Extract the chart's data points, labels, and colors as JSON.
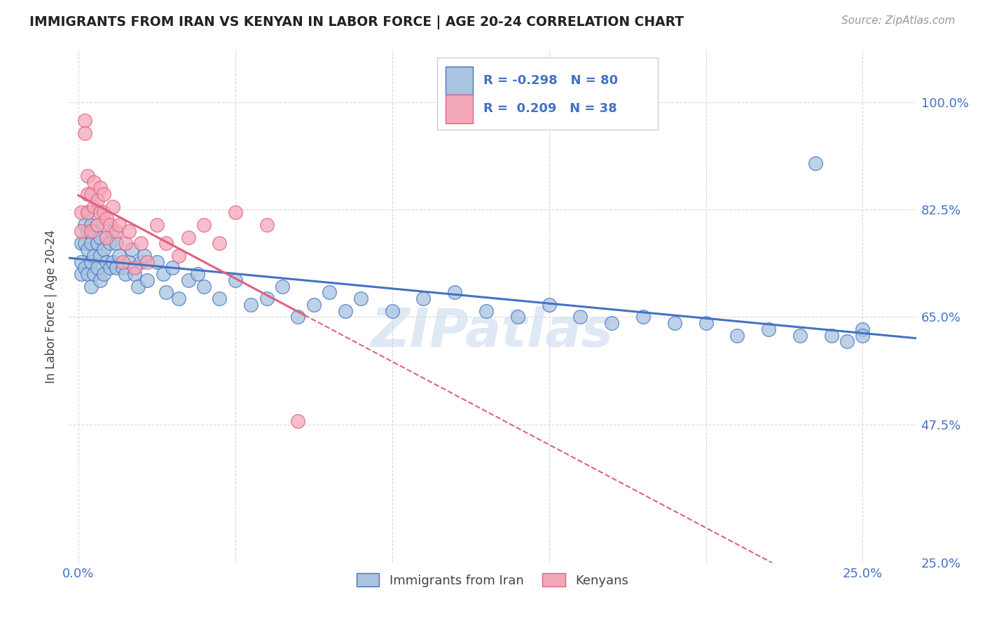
{
  "title": "IMMIGRANTS FROM IRAN VS KENYAN IN LABOR FORCE | AGE 20-24 CORRELATION CHART",
  "source": "Source: ZipAtlas.com",
  "ylabel": "In Labor Force | Age 20-24",
  "watermark": "ZIPatlas",
  "legend_iran": "Immigrants from Iran",
  "legend_kenya": "Kenyans",
  "iran_R": "-0.298",
  "iran_N": "80",
  "kenya_R": "0.209",
  "kenya_N": "38",
  "iran_color": "#a8c4e0",
  "kenya_color": "#f4a7b9",
  "iran_line_color": "#4472c4",
  "kenya_line_color": "#e06080",
  "background_color": "#ffffff",
  "grid_color": "#d8d8d8",
  "title_color": "#222222",
  "axis_color": "#4472c4",
  "iran_scatter_x": [
    0.001,
    0.001,
    0.001,
    0.002,
    0.002,
    0.002,
    0.003,
    0.003,
    0.003,
    0.003,
    0.004,
    0.004,
    0.004,
    0.004,
    0.005,
    0.005,
    0.005,
    0.006,
    0.006,
    0.006,
    0.007,
    0.007,
    0.007,
    0.008,
    0.008,
    0.009,
    0.009,
    0.01,
    0.01,
    0.011,
    0.011,
    0.012,
    0.012,
    0.013,
    0.014,
    0.015,
    0.016,
    0.017,
    0.018,
    0.019,
    0.02,
    0.021,
    0.022,
    0.025,
    0.027,
    0.028,
    0.03,
    0.032,
    0.035,
    0.038,
    0.04,
    0.045,
    0.05,
    0.055,
    0.06,
    0.065,
    0.07,
    0.075,
    0.08,
    0.085,
    0.09,
    0.1,
    0.11,
    0.12,
    0.13,
    0.14,
    0.15,
    0.16,
    0.17,
    0.18,
    0.19,
    0.2,
    0.21,
    0.22,
    0.23,
    0.235,
    0.24,
    0.245,
    0.25,
    0.25
  ],
  "iran_scatter_y": [
    0.77,
    0.74,
    0.72,
    0.8,
    0.77,
    0.73,
    0.82,
    0.79,
    0.76,
    0.72,
    0.8,
    0.77,
    0.74,
    0.7,
    0.79,
    0.75,
    0.72,
    0.8,
    0.77,
    0.73,
    0.78,
    0.75,
    0.71,
    0.76,
    0.72,
    0.78,
    0.74,
    0.77,
    0.73,
    0.79,
    0.74,
    0.77,
    0.73,
    0.75,
    0.73,
    0.72,
    0.74,
    0.76,
    0.72,
    0.7,
    0.74,
    0.75,
    0.71,
    0.74,
    0.72,
    0.69,
    0.73,
    0.68,
    0.71,
    0.72,
    0.7,
    0.68,
    0.71,
    0.67,
    0.68,
    0.7,
    0.65,
    0.67,
    0.69,
    0.66,
    0.68,
    0.66,
    0.68,
    0.69,
    0.66,
    0.65,
    0.67,
    0.65,
    0.64,
    0.65,
    0.64,
    0.64,
    0.62,
    0.63,
    0.62,
    0.9,
    0.62,
    0.61,
    0.63,
    0.62
  ],
  "kenya_scatter_x": [
    0.001,
    0.001,
    0.002,
    0.002,
    0.003,
    0.003,
    0.003,
    0.004,
    0.004,
    0.005,
    0.005,
    0.006,
    0.006,
    0.007,
    0.007,
    0.008,
    0.008,
    0.009,
    0.009,
    0.01,
    0.011,
    0.012,
    0.013,
    0.014,
    0.015,
    0.016,
    0.018,
    0.02,
    0.022,
    0.025,
    0.028,
    0.032,
    0.035,
    0.04,
    0.045,
    0.05,
    0.06,
    0.07
  ],
  "kenya_scatter_y": [
    0.82,
    0.79,
    0.97,
    0.95,
    0.88,
    0.85,
    0.82,
    0.79,
    0.85,
    0.83,
    0.87,
    0.84,
    0.8,
    0.86,
    0.82,
    0.85,
    0.82,
    0.78,
    0.81,
    0.8,
    0.83,
    0.79,
    0.8,
    0.74,
    0.77,
    0.79,
    0.73,
    0.77,
    0.74,
    0.8,
    0.77,
    0.75,
    0.78,
    0.8,
    0.77,
    0.82,
    0.8,
    0.48
  ],
  "xlim": [
    -0.003,
    0.267
  ],
  "ylim": [
    0.25,
    1.085
  ],
  "yticks": [
    0.25,
    0.475,
    0.65,
    0.825,
    1.0
  ],
  "ytick_labels_right": [
    "25.0%",
    "47.5%",
    "65.0%",
    "82.5%",
    "100.0%"
  ],
  "xticks": [
    0.0,
    0.05,
    0.1,
    0.15,
    0.2,
    0.25
  ],
  "xtick_labels": [
    "0.0%",
    "",
    "",
    "",
    "",
    "25.0%"
  ]
}
